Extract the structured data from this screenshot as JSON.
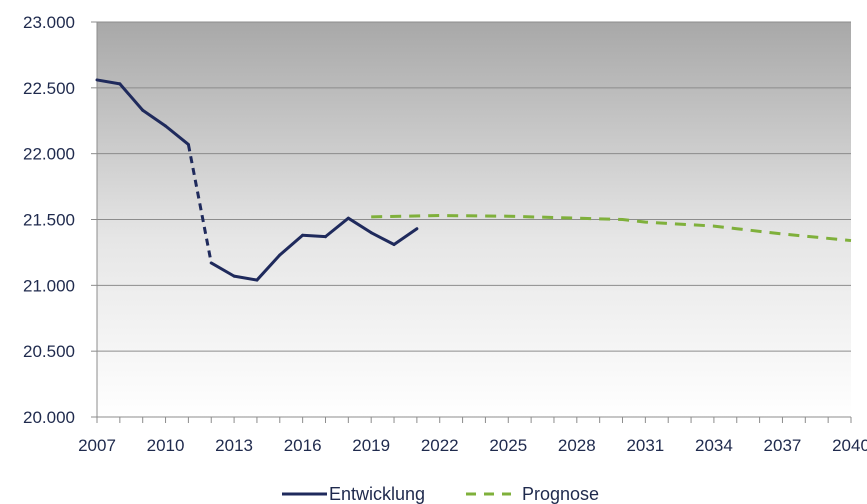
{
  "chart_data": {
    "type": "line",
    "title": "",
    "xlabel": "",
    "ylabel": "",
    "xlim": [
      2007,
      2040
    ],
    "ylim": [
      20000,
      23000
    ],
    "x_ticks": [
      2007,
      2010,
      2013,
      2016,
      2019,
      2022,
      2025,
      2028,
      2031,
      2034,
      2037,
      2040
    ],
    "y_ticks": [
      20000,
      20500,
      21000,
      21500,
      22000,
      22500,
      23000
    ],
    "x_tick_labels": [
      "2007",
      "2010",
      "2013",
      "2016",
      "2019",
      "2022",
      "2025",
      "2028",
      "2031",
      "2034",
      "2037",
      "2040"
    ],
    "y_tick_labels": [
      "20.000",
      "20.500",
      "21.000",
      "21.500",
      "22.000",
      "22.500",
      "23.000"
    ],
    "grid": true,
    "legend_position": "bottom",
    "background": "vertical gradient, grey at top to white at bottom",
    "series": [
      {
        "name": "Entwicklung",
        "color": "#1f2a5c",
        "style": "solid",
        "dashed_segments": [
          [
            2011,
            2012
          ]
        ],
        "x": [
          2007,
          2008,
          2009,
          2010,
          2011,
          2012,
          2013,
          2014,
          2015,
          2016,
          2017,
          2018,
          2019,
          2020,
          2021
        ],
        "values": [
          22560,
          22530,
          22330,
          22210,
          22070,
          21170,
          21070,
          21040,
          21230,
          21380,
          21370,
          21510,
          21400,
          21310,
          21430
        ]
      },
      {
        "name": "Prognose",
        "color": "#7fb03b",
        "style": "dashed",
        "x": [
          2019,
          2022,
          2025,
          2028,
          2030,
          2031,
          2034,
          2035,
          2037,
          2040
        ],
        "values": [
          21520,
          21530,
          21525,
          21510,
          21500,
          21480,
          21450,
          21430,
          21390,
          21340
        ]
      }
    ]
  }
}
